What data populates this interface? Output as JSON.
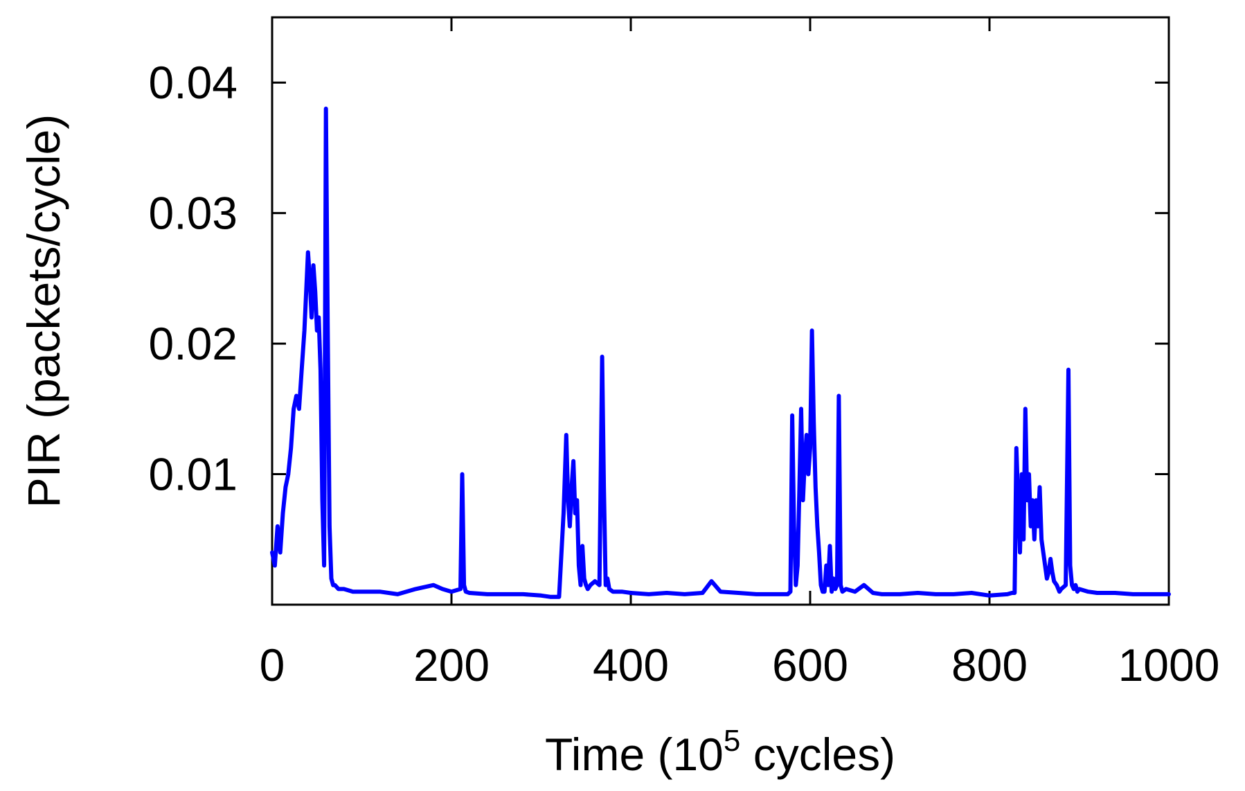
{
  "chart_data": {
    "type": "line",
    "title": "",
    "xlabel": "Time (10",
    "xlabel_superscript": "5",
    "xlabel_suffix": " cycles)",
    "ylabel": "PIR (packets/cycle)",
    "xlim": [
      0,
      1000
    ],
    "ylim": [
      0,
      0.045
    ],
    "grid": false,
    "x_ticks": [
      0,
      200,
      400,
      600,
      800,
      1000
    ],
    "x_tick_labels": [
      "0",
      "200",
      "400",
      "600",
      "800",
      "1000"
    ],
    "y_ticks": [
      0.01,
      0.02,
      0.03,
      0.04
    ],
    "y_tick_labels": [
      "0.01",
      "0.02",
      "0.03",
      "0.04"
    ],
    "line_color": "#0000ff",
    "series": [
      {
        "name": "PIR",
        "x": [
          0,
          3,
          6,
          9,
          12,
          15,
          18,
          21,
          24,
          27,
          30,
          33,
          36,
          38,
          40,
          42,
          44,
          46,
          48,
          50,
          52,
          54,
          56,
          58,
          60,
          62,
          64,
          66,
          68,
          70,
          74,
          80,
          90,
          100,
          120,
          140,
          160,
          180,
          190,
          200,
          210,
          212,
          214,
          216,
          220,
          240,
          260,
          280,
          300,
          310,
          320,
          325,
          328,
          330,
          332,
          334,
          336,
          338,
          340,
          342,
          344,
          346,
          348,
          350,
          352,
          355,
          360,
          365,
          368,
          370,
          372,
          374,
          376,
          380,
          390,
          400,
          420,
          440,
          460,
          480,
          490,
          500,
          520,
          540,
          560,
          570,
          575,
          578,
          580,
          582,
          584,
          586,
          588,
          590,
          592,
          594,
          596,
          598,
          600,
          602,
          604,
          606,
          608,
          610,
          612,
          614,
          616,
          618,
          620,
          622,
          624,
          626,
          628,
          630,
          632,
          634,
          636,
          640,
          650,
          660,
          670,
          680,
          700,
          720,
          740,
          760,
          780,
          800,
          820,
          825,
          828,
          830,
          832,
          834,
          836,
          838,
          840,
          842,
          844,
          846,
          848,
          850,
          852,
          854,
          856,
          858,
          860,
          862,
          864,
          866,
          868,
          870,
          872,
          875,
          878,
          880,
          885,
          888,
          890,
          892,
          894,
          896,
          898,
          900,
          910,
          920,
          940,
          960,
          980,
          1000
        ],
        "values": [
          0.004,
          0.003,
          0.006,
          0.004,
          0.007,
          0.009,
          0.01,
          0.012,
          0.015,
          0.016,
          0.015,
          0.018,
          0.021,
          0.024,
          0.027,
          0.025,
          0.022,
          0.026,
          0.024,
          0.021,
          0.022,
          0.018,
          0.008,
          0.003,
          0.038,
          0.021,
          0.006,
          0.002,
          0.0015,
          0.0015,
          0.0012,
          0.0012,
          0.001,
          0.001,
          0.001,
          0.0008,
          0.0012,
          0.0015,
          0.0012,
          0.001,
          0.0012,
          0.01,
          0.0015,
          0.001,
          0.0009,
          0.0008,
          0.0008,
          0.0008,
          0.0007,
          0.0006,
          0.0006,
          0.007,
          0.013,
          0.008,
          0.006,
          0.009,
          0.011,
          0.007,
          0.008,
          0.003,
          0.0015,
          0.0045,
          0.002,
          0.0015,
          0.0012,
          0.0015,
          0.0018,
          0.0015,
          0.019,
          0.009,
          0.0015,
          0.002,
          0.0012,
          0.001,
          0.001,
          0.0009,
          0.0008,
          0.0009,
          0.0008,
          0.0009,
          0.0018,
          0.001,
          0.0009,
          0.0008,
          0.0008,
          0.0008,
          0.0008,
          0.001,
          0.0145,
          0.006,
          0.0015,
          0.003,
          0.009,
          0.015,
          0.008,
          0.011,
          0.013,
          0.01,
          0.012,
          0.021,
          0.014,
          0.009,
          0.006,
          0.004,
          0.0015,
          0.001,
          0.001,
          0.003,
          0.0015,
          0.0045,
          0.001,
          0.002,
          0.0012,
          0.0015,
          0.016,
          0.0015,
          0.001,
          0.0012,
          0.001,
          0.0015,
          0.0009,
          0.0008,
          0.0008,
          0.0009,
          0.0008,
          0.0008,
          0.0009,
          0.0007,
          0.0008,
          0.0009,
          0.0009,
          0.012,
          0.008,
          0.004,
          0.01,
          0.005,
          0.015,
          0.008,
          0.01,
          0.006,
          0.008,
          0.005,
          0.008,
          0.006,
          0.009,
          0.005,
          0.004,
          0.003,
          0.002,
          0.0025,
          0.0035,
          0.0025,
          0.0018,
          0.0015,
          0.001,
          0.0012,
          0.0015,
          0.018,
          0.003,
          0.0015,
          0.0012,
          0.0015,
          0.001,
          0.0012,
          0.001,
          0.0009,
          0.0009,
          0.0008,
          0.0008,
          0.0008
        ]
      }
    ]
  }
}
